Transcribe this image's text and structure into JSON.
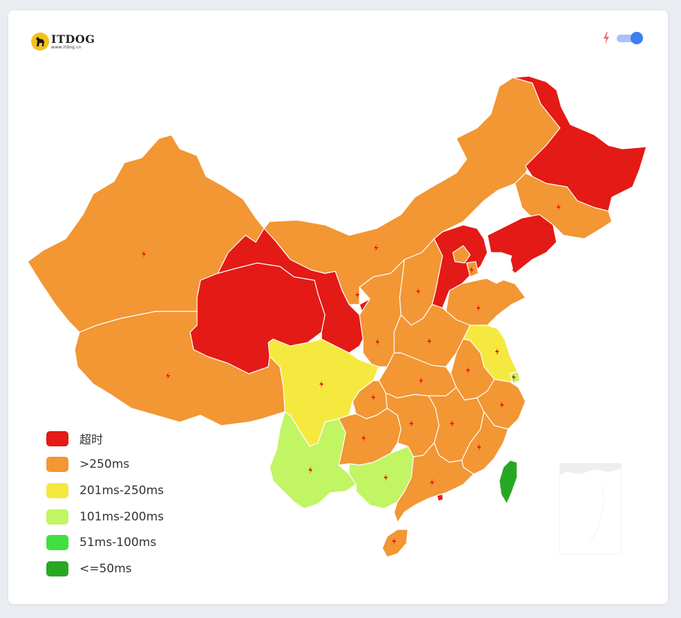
{
  "logo": {
    "name": "ITDOG",
    "url": "www.itdog.cn"
  },
  "header": {
    "lightning_icon": "lightning-icon",
    "toggle": {
      "state": "on",
      "color": "#3d7ff2"
    }
  },
  "legend": [
    {
      "label": "超时",
      "color": "#e41a16"
    },
    {
      "label": ">250ms",
      "color": "#f39634"
    },
    {
      "label": "201ms-250ms",
      "color": "#f5e940"
    },
    {
      "label": "101ms-200ms",
      "color": "#c1f564"
    },
    {
      "label": "51ms-100ms",
      "color": "#40de40"
    },
    {
      "label": "<=50ms",
      "color": "#27a822"
    }
  ],
  "regions": [
    {
      "id": "xinjiang",
      "level": ">250ms"
    },
    {
      "id": "tibet",
      "level": ">250ms"
    },
    {
      "id": "qinghai",
      "level": "超时"
    },
    {
      "id": "gansu",
      "level": "超时"
    },
    {
      "id": "ningxia",
      "level": "超时"
    },
    {
      "id": "inner-mongolia",
      "level": ">250ms"
    },
    {
      "id": "heilongjiang",
      "level": "超时"
    },
    {
      "id": "jilin",
      "level": ">250ms"
    },
    {
      "id": "liaoning",
      "level": "超时"
    },
    {
      "id": "hebei",
      "level": "超时"
    },
    {
      "id": "beijing",
      "level": ">250ms"
    },
    {
      "id": "tianjin",
      "level": ">250ms"
    },
    {
      "id": "shanxi",
      "level": ">250ms"
    },
    {
      "id": "shaanxi",
      "level": ">250ms"
    },
    {
      "id": "shandong",
      "level": ">250ms"
    },
    {
      "id": "henan",
      "level": ">250ms"
    },
    {
      "id": "jiangsu",
      "level": "201ms-250ms"
    },
    {
      "id": "shanghai",
      "level": "101ms-200ms"
    },
    {
      "id": "anhui",
      "level": ">250ms"
    },
    {
      "id": "hubei",
      "level": ">250ms"
    },
    {
      "id": "sichuan",
      "level": "201ms-250ms"
    },
    {
      "id": "chongqing",
      "level": ">250ms"
    },
    {
      "id": "yunnan",
      "level": "101ms-200ms"
    },
    {
      "id": "guizhou",
      "level": ">250ms"
    },
    {
      "id": "guangxi",
      "level": "101ms-200ms"
    },
    {
      "id": "hunan",
      "level": ">250ms"
    },
    {
      "id": "jiangxi",
      "level": ">250ms"
    },
    {
      "id": "zhejiang",
      "level": ">250ms"
    },
    {
      "id": "fujian",
      "level": ">250ms"
    },
    {
      "id": "guangdong",
      "level": ">250ms"
    },
    {
      "id": "hong-kong",
      "level": "超时"
    },
    {
      "id": "hainan",
      "level": ">250ms"
    },
    {
      "id": "taiwan",
      "level": "<=50ms"
    }
  ]
}
